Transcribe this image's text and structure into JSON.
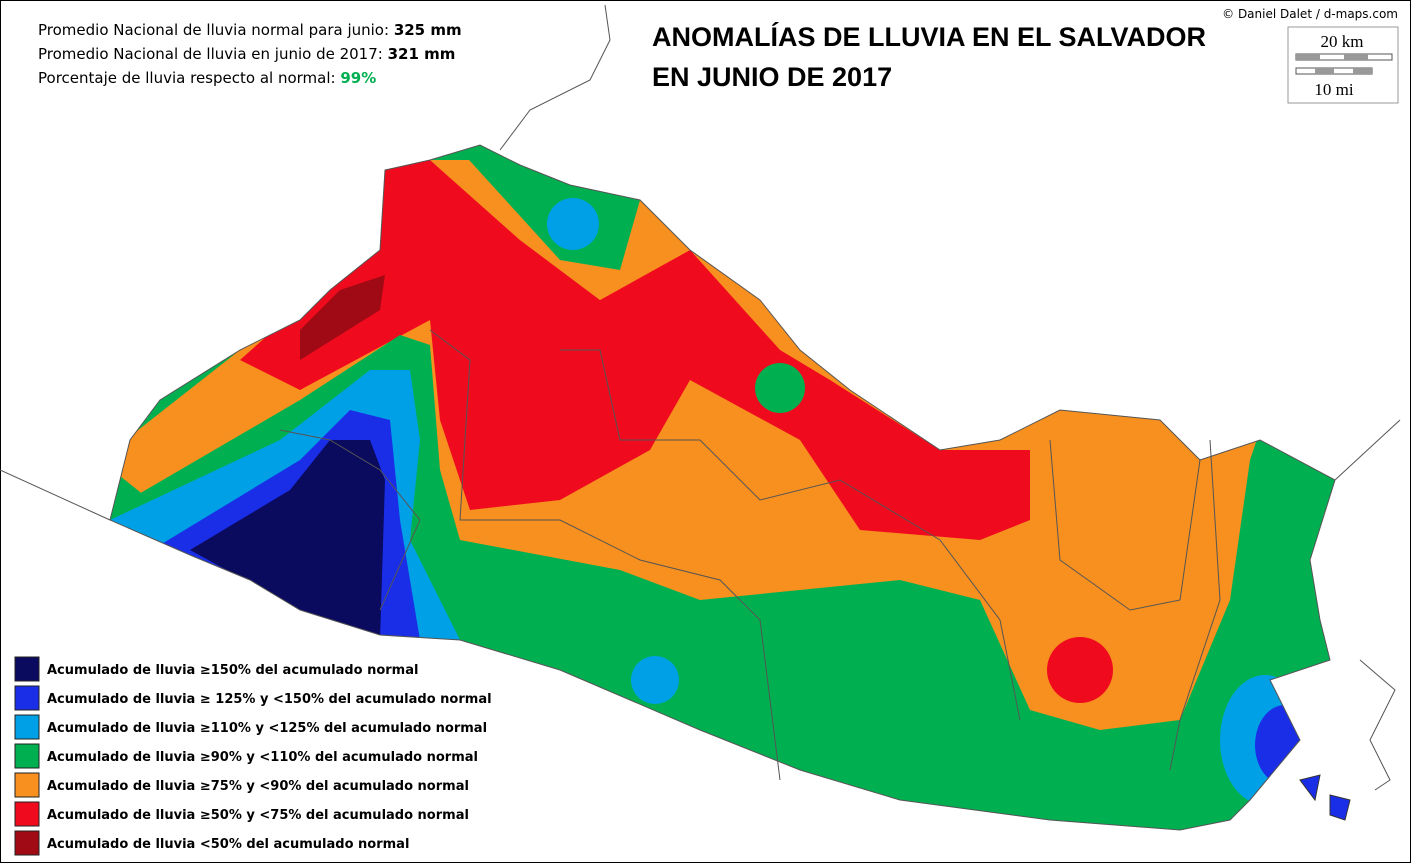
{
  "header": {
    "stats": [
      {
        "label": "Promedio Nacional de lluvia normal para junio:",
        "value": "325 mm"
      },
      {
        "label": "Promedio Nacional de lluvia en junio de 2017:",
        "value": "321 mm"
      },
      {
        "label": "Porcentaje de lluvia respecto al normal:",
        "value": "99%"
      }
    ],
    "title": [
      "ANOMALÍAS DE LLUVIA EN EL SALVADOR",
      "EN JUNIO DE 2017"
    ],
    "credit": "© Daniel Dalet / d-maps.com"
  },
  "scale": {
    "km": "20 km",
    "mi": "10 mi"
  },
  "legend": [
    {
      "label": "Acumulado de lluvia ≥150% del acumulado normal",
      "color": "#0a0a5e"
    },
    {
      "label": "Acumulado de lluvia ≥ 125% y <150% del acumulado normal",
      "color": "#1a2ee8"
    },
    {
      "label": "Acumulado de lluvia ≥110% y  <125% del acumulado normal",
      "color": "#00a0e6"
    },
    {
      "label": "Acumulado de lluvia  ≥90% y <110% del acumulado normal",
      "color": "#00b050"
    },
    {
      "label": "Acumulado de lluvia ≥75% y <90% del acumulado normal",
      "color": "#f7901e"
    },
    {
      "label": "Acumulado de lluvia  ≥50% y <75% del acumulado normal",
      "color": "#f00a1e"
    },
    {
      "label": "Acumulado de lluvia  <50% del acumulado normal",
      "color": "#a00a14"
    }
  ]
}
